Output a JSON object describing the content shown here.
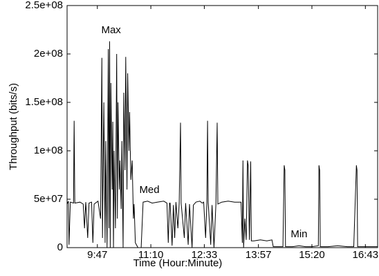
{
  "chart_data": {
    "type": "line",
    "x_label": "Time (Hour:Minute)",
    "y_label": "Throughput (bits/s)",
    "annotations": [
      {
        "text": "Max",
        "x": 606,
        "y": 213000000.0
      },
      {
        "text": "Med",
        "x": 665,
        "y": 48000000.0
      },
      {
        "text": "Min",
        "x": 900,
        "y": 2000000.0
      }
    ],
    "x": [
      540,
      542,
      543,
      545,
      550,
      551,
      552,
      560,
      565,
      567,
      569,
      572,
      574,
      578,
      580,
      582,
      588,
      592,
      594,
      595,
      597,
      599,
      600,
      602,
      604,
      605,
      606,
      607,
      608,
      610,
      611,
      612,
      613,
      615,
      617,
      618,
      619,
      621,
      622,
      624,
      625,
      627,
      628,
      630,
      631,
      633,
      634,
      636,
      637,
      639,
      641,
      643,
      644,
      646,
      650,
      655,
      658,
      665,
      672,
      680,
      690,
      695,
      697,
      699,
      700,
      703,
      705,
      707,
      709,
      712,
      714,
      716,
      717,
      722,
      724,
      728,
      730,
      734,
      736,
      740,
      746,
      750,
      752,
      755,
      757,
      758,
      759,
      763,
      765,
      768,
      771,
      773,
      774,
      780,
      790,
      800,
      810,
      812,
      813,
      814,
      816,
      818,
      820,
      821,
      823,
      825,
      826,
      830,
      840,
      850,
      858,
      860,
      870,
      875,
      877,
      878,
      879,
      890,
      900,
      910,
      920,
      930,
      931,
      932,
      933,
      945,
      960,
      975,
      985,
      989,
      990,
      991,
      1000,
      1010,
      1022
    ],
    "series": [
      {
        "color": "#000000",
        "values": [
          45000000.0,
          48000000.0,
          3000000.0,
          47000000.0,
          46000000.0,
          131000000.0,
          46000000.0,
          47000000.0,
          45000000.0,
          20000000.0,
          47000000.0,
          10000000.0,
          46000000.0,
          47000000.0,
          5000000.0,
          45000000.0,
          48000000.0,
          30000000.0,
          196000000.0,
          10000000.0,
          150000000.0,
          5000000.0,
          110000000.0,
          0,
          205000000.0,
          20000000.0,
          213000000.0,
          0,
          170000000.0,
          60000000.0,
          130000000.0,
          0,
          100000000.0,
          20000000.0,
          200000000.0,
          30000000.0,
          150000000.0,
          60000000.0,
          90000000.0,
          40000000.0,
          110000000.0,
          0,
          160000000.0,
          80000000.0,
          197000000.0,
          60000000.0,
          180000000.0,
          100000000.0,
          140000000.0,
          70000000.0,
          90000000.0,
          30000000.0,
          45000000.0,
          5000000.0,
          0,
          0,
          47000000.0,
          48000000.0,
          46000000.0,
          47000000.0,
          48000000.0,
          46000000.0,
          5000000.0,
          46000000.0,
          46000000.0,
          2000000.0,
          44000000.0,
          10000000.0,
          47000000.0,
          20000000.0,
          46000000.0,
          129000000.0,
          46000000.0,
          10000000.0,
          46000000.0,
          3000000.0,
          45000000.0,
          0,
          44000000.0,
          47000000.0,
          48000000.0,
          46000000.0,
          47000000.0,
          10000000.0,
          46000000.0,
          131000000.0,
          47000000.0,
          3000000.0,
          44000000.0,
          0,
          45000000.0,
          129000000.0,
          45000000.0,
          47000000.0,
          48000000.0,
          47000000.0,
          47000000.0,
          5000000.0,
          90000000.0,
          0,
          30000000.0,
          8000000.0,
          90000000.0,
          85000000.0,
          8000000.0,
          89000000.0,
          7000000.0,
          7000000.0,
          8000000.0,
          7000000.0,
          8000000.0,
          1000000.0,
          1000000.0,
          1000000.0,
          85000000.0,
          80000000.0,
          1000000.0,
          1000000.0,
          2000000.0,
          1000000.0,
          1000000.0,
          2000000.0,
          85000000.0,
          80000000.0,
          1000000.0,
          1000000.0,
          2000000.0,
          1000000.0,
          1000000.0,
          85000000.0,
          80000000.0,
          1000000.0,
          1000000.0,
          1000000.0,
          1000000.0
        ]
      }
    ],
    "xlim": [
      540,
      1022
    ],
    "ylim": [
      0,
      250000000.0
    ],
    "xticks": [
      {
        "value": 587,
        "label": "9:47"
      },
      {
        "value": 670,
        "label": "11:10"
      },
      {
        "value": 753,
        "label": "12:33"
      },
      {
        "value": 837,
        "label": "13:57"
      },
      {
        "value": 920,
        "label": "15:20"
      },
      {
        "value": 1003,
        "label": "16:43"
      }
    ],
    "yticks": [
      0,
      {
        "value": 50000000.0,
        "label": "5e+07"
      },
      {
        "value": 100000000.0,
        "label": "1e+08"
      },
      {
        "value": 150000000.0,
        "label": "1.5e+08"
      },
      {
        "value": 200000000.0,
        "label": "2e+08"
      },
      {
        "value": 250000000.0,
        "label": "2.5e+08"
      }
    ]
  }
}
